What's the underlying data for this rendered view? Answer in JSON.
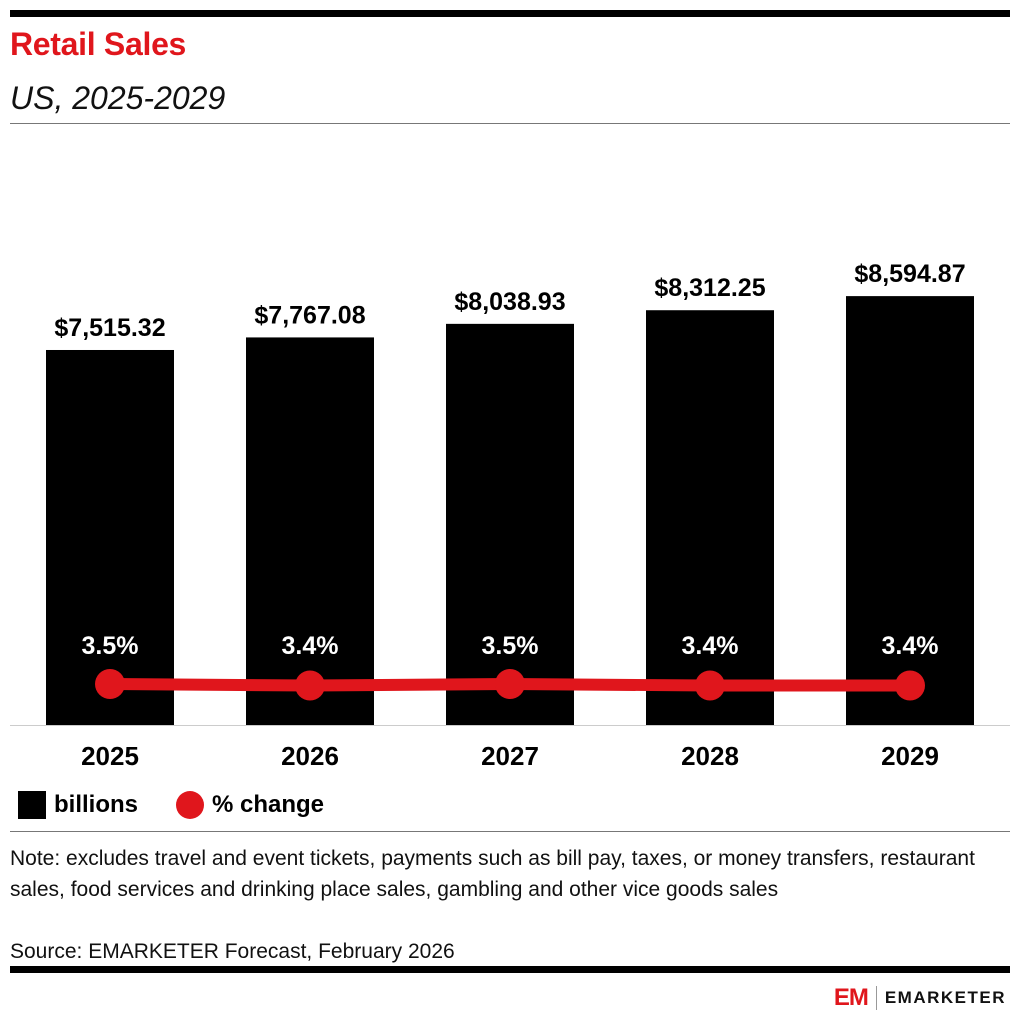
{
  "title": "Retail Sales",
  "subtitle": "US, 2025-2029",
  "legend": {
    "bar_label": "billions",
    "line_label": "% change"
  },
  "note": "Note: excludes travel and event tickets, payments such as bill pay, taxes, or money transfers, restaurant sales, food services and drinking place sales, gambling and other vice goods sales",
  "source": "Source: EMARKETER Forecast, February 2026",
  "brand": {
    "mark": "EM",
    "name": "EMARKETER"
  },
  "colors": {
    "bar": "#000000",
    "line": "#e0161c",
    "title": "#e0161c"
  },
  "chart_data": {
    "type": "bar",
    "categories": [
      "2025",
      "2026",
      "2027",
      "2028",
      "2029"
    ],
    "series": [
      {
        "name": "billions",
        "type": "bar",
        "values": [
          7515.32,
          7767.08,
          8038.93,
          8312.25,
          8594.87
        ],
        "labels": [
          "$7,515.32",
          "$7,767.08",
          "$8,038.93",
          "$8,312.25",
          "$8,594.87"
        ]
      },
      {
        "name": "% change",
        "type": "line",
        "values": [
          3.5,
          3.4,
          3.5,
          3.4,
          3.4
        ],
        "labels": [
          "3.5%",
          "3.4%",
          "3.5%",
          "3.4%",
          "3.4%"
        ]
      }
    ],
    "ylim": [
      0,
      10000
    ],
    "grid": false,
    "legend_position": "bottom-left"
  }
}
